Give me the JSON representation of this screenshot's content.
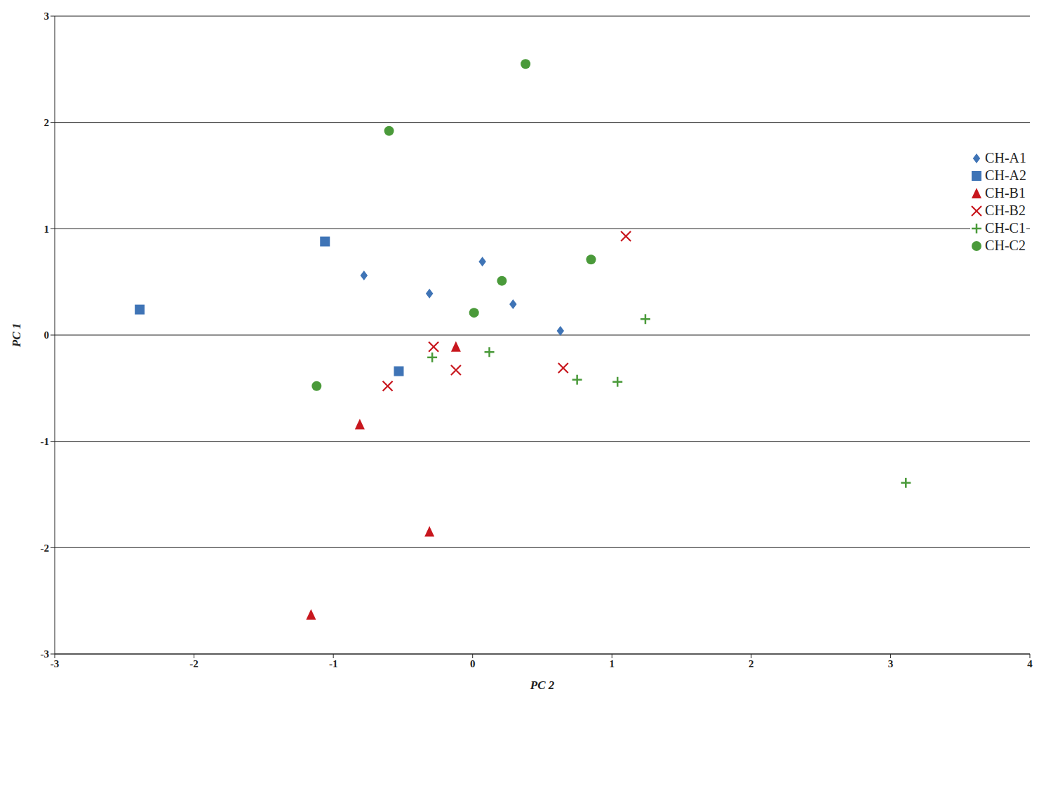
{
  "chart_data": {
    "type": "scatter",
    "x_label": "PC 2",
    "y_label": "PC 1",
    "xlim": [
      -3,
      4
    ],
    "xticks": [
      -3,
      -2,
      -1,
      0,
      1,
      2,
      3,
      4
    ],
    "ylim": [
      -3,
      3
    ],
    "yticks": [
      -3,
      -2,
      -1,
      0,
      1,
      2,
      3
    ],
    "grid": true,
    "legend": "top right",
    "series": [
      {
        "name": "CH-A1",
        "color": "#3f74b6",
        "marker": "diamond",
        "x": [
          -0.78,
          -0.31,
          0.07,
          0.29,
          0.63
        ],
        "values": [
          0.56,
          0.39,
          0.69,
          0.29,
          0.04
        ]
      },
      {
        "name": "CH-A2",
        "color": "#3f74b6",
        "marker": "square",
        "x": [
          -1.06,
          -2.39,
          -0.53
        ],
        "values": [
          0.88,
          0.24,
          -0.34
        ]
      },
      {
        "name": "CH-B1",
        "color": "#c8171e",
        "marker": "triangle",
        "x": [
          -0.12,
          -0.81,
          -0.31,
          -1.16
        ],
        "values": [
          -0.11,
          -0.84,
          -1.85,
          -2.63
        ]
      },
      {
        "name": "CH-B2",
        "color": "#c8171e",
        "marker": "x",
        "x": [
          -0.28,
          -0.12,
          -0.61,
          0.65,
          1.1
        ],
        "values": [
          -0.11,
          -0.33,
          -0.48,
          -0.31,
          0.93
        ]
      },
      {
        "name": "CH-C1",
        "color": "#4a9a3a",
        "marker": "plus",
        "x": [
          -0.29,
          0.12,
          0.75,
          1.04,
          1.24,
          3.11
        ],
        "values": [
          -0.21,
          -0.16,
          -0.42,
          -0.44,
          0.15,
          -1.39
        ]
      },
      {
        "name": "CH-C2",
        "color": "#4a9a3a",
        "marker": "circle",
        "x": [
          0.38,
          -0.6,
          0.85,
          0.21,
          0.01,
          -1.12
        ],
        "values": [
          2.55,
          1.92,
          0.71,
          0.51,
          0.21,
          -0.48
        ]
      }
    ]
  }
}
